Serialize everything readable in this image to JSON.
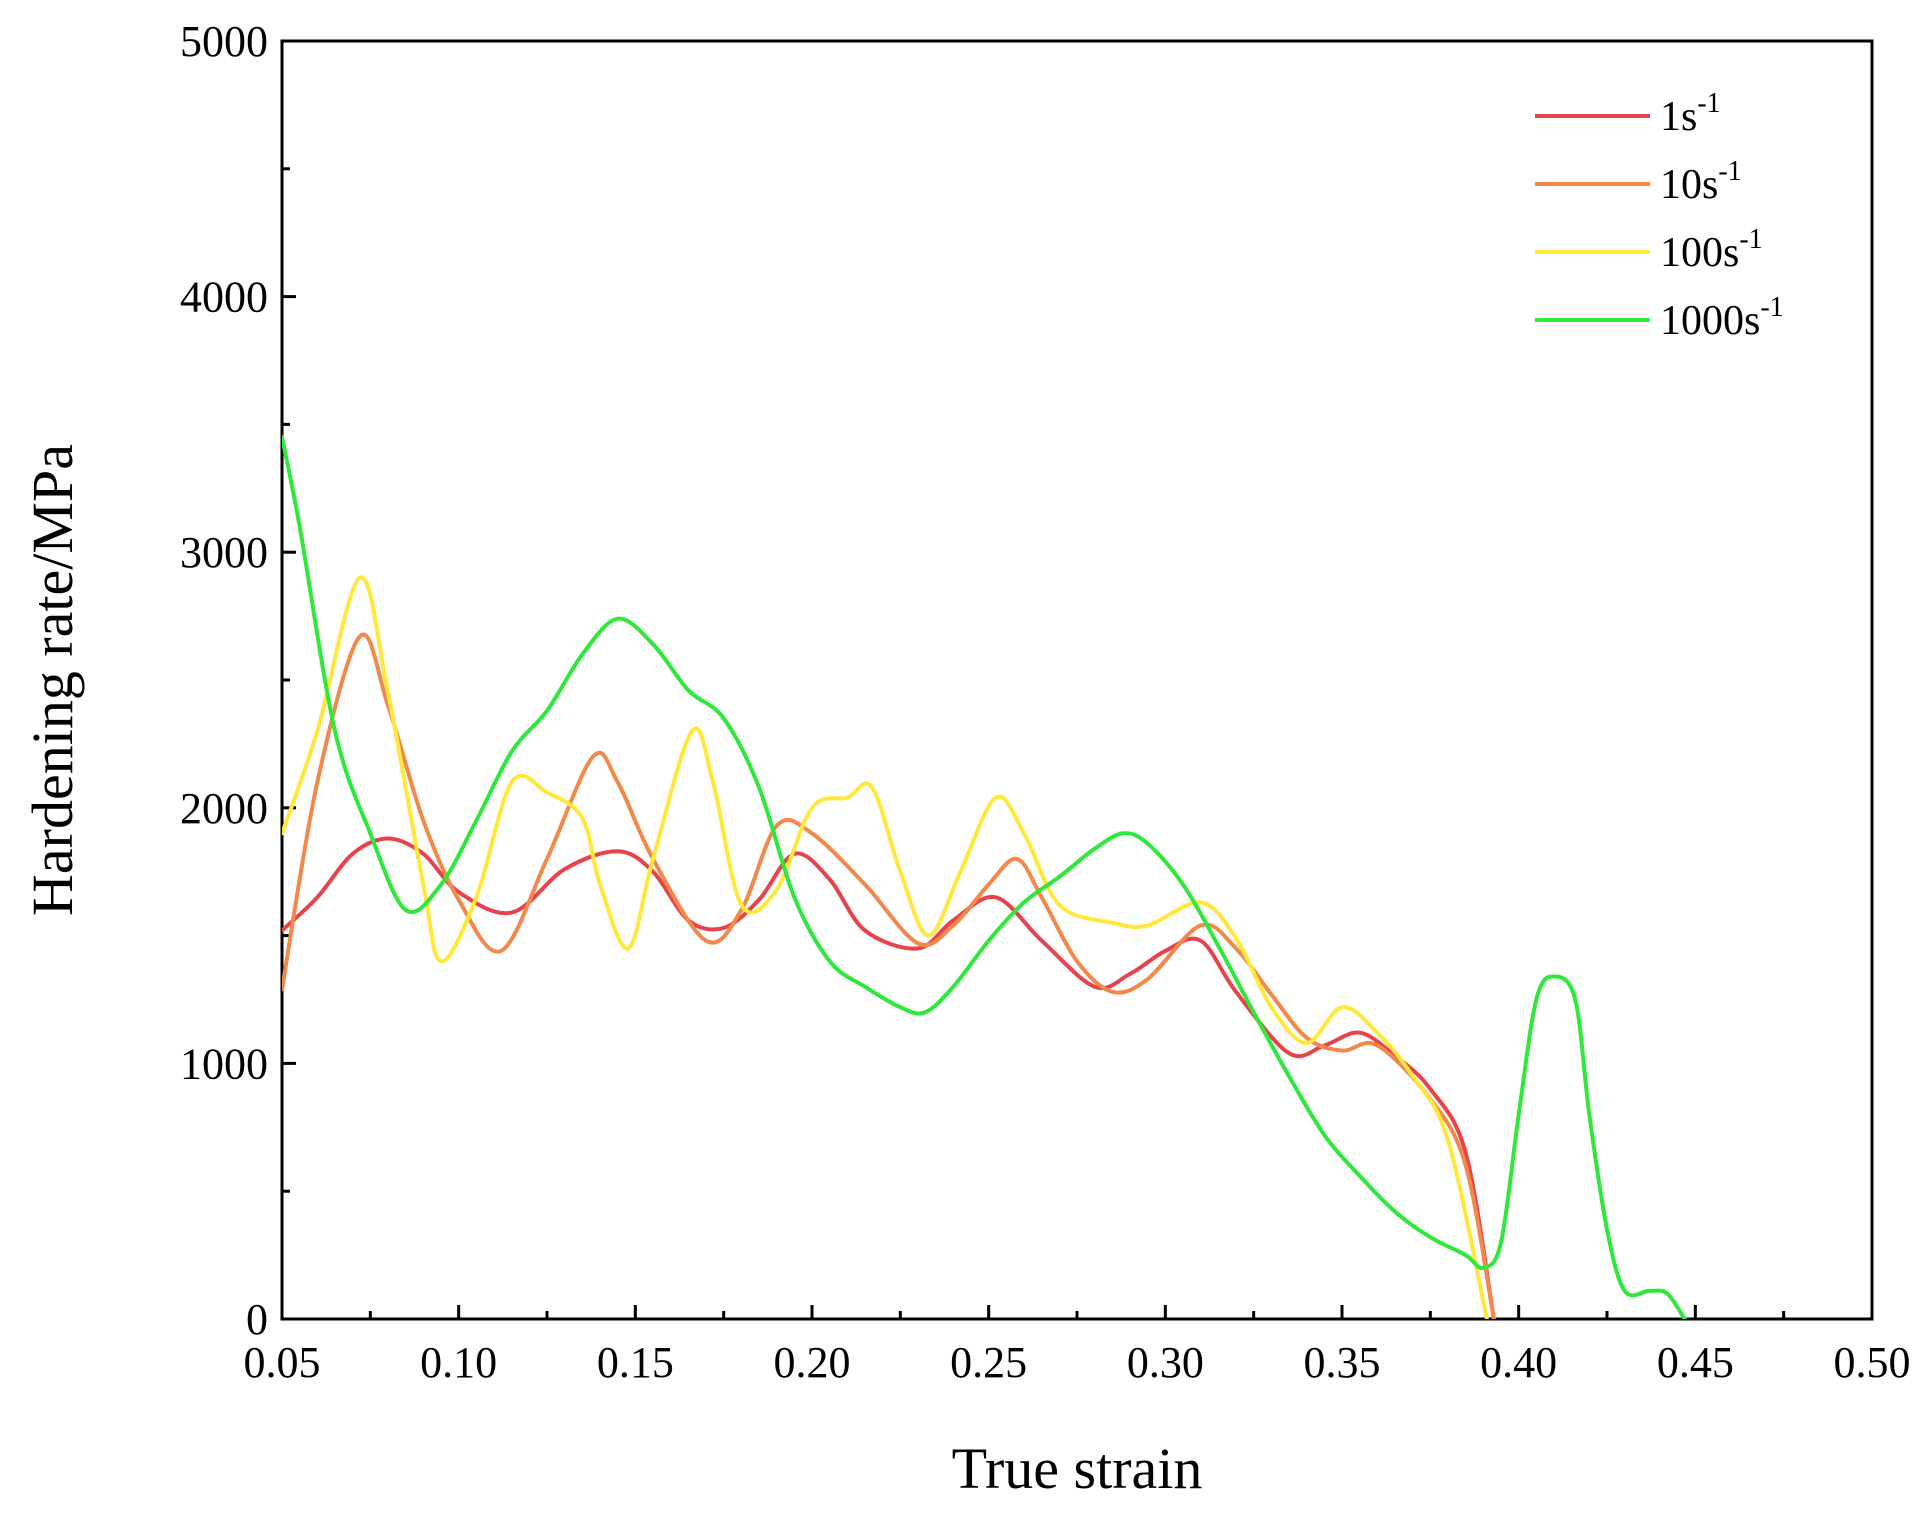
{
  "chart_data": {
    "type": "line",
    "title": "",
    "xlabel": "True strain",
    "ylabel": "Hardening rate/MPa",
    "xlim": [
      0.05,
      0.5
    ],
    "ylim": [
      0,
      5000
    ],
    "xticks": [
      "0.05",
      "0.10",
      "0.15",
      "0.20",
      "0.25",
      "0.30",
      "0.35",
      "0.40",
      "0.45",
      "0.50"
    ],
    "yticks": [
      "0",
      "1000",
      "2000",
      "3000",
      "4000",
      "5000"
    ],
    "legend_position": "top-right",
    "series": [
      {
        "name": "1s",
        "exponent": "-1",
        "color": "#e8424a",
        "points": [
          [
            0.05,
            1520
          ],
          [
            0.06,
            1650
          ],
          [
            0.07,
            1820
          ],
          [
            0.08,
            1880
          ],
          [
            0.09,
            1820
          ],
          [
            0.1,
            1670
          ],
          [
            0.115,
            1590
          ],
          [
            0.13,
            1760
          ],
          [
            0.145,
            1830
          ],
          [
            0.155,
            1750
          ],
          [
            0.165,
            1560
          ],
          [
            0.175,
            1530
          ],
          [
            0.185,
            1640
          ],
          [
            0.195,
            1820
          ],
          [
            0.205,
            1720
          ],
          [
            0.215,
            1520
          ],
          [
            0.23,
            1450
          ],
          [
            0.24,
            1560
          ],
          [
            0.252,
            1650
          ],
          [
            0.265,
            1480
          ],
          [
            0.28,
            1300
          ],
          [
            0.29,
            1350
          ],
          [
            0.3,
            1440
          ],
          [
            0.31,
            1480
          ],
          [
            0.32,
            1280
          ],
          [
            0.335,
            1040
          ],
          [
            0.345,
            1070
          ],
          [
            0.355,
            1120
          ],
          [
            0.365,
            1030
          ],
          [
            0.375,
            900
          ],
          [
            0.385,
            650
          ],
          [
            0.393,
            0
          ]
        ]
      },
      {
        "name": "10s",
        "exponent": "-1",
        "color": "#f2884a",
        "points": [
          [
            0.05,
            1290
          ],
          [
            0.06,
            2100
          ],
          [
            0.072,
            2670
          ],
          [
            0.08,
            2400
          ],
          [
            0.09,
            1950
          ],
          [
            0.1,
            1640
          ],
          [
            0.112,
            1440
          ],
          [
            0.125,
            1800
          ],
          [
            0.138,
            2200
          ],
          [
            0.145,
            2100
          ],
          [
            0.155,
            1800
          ],
          [
            0.17,
            1480
          ],
          [
            0.18,
            1600
          ],
          [
            0.19,
            1930
          ],
          [
            0.2,
            1900
          ],
          [
            0.215,
            1700
          ],
          [
            0.23,
            1470
          ],
          [
            0.24,
            1540
          ],
          [
            0.25,
            1700
          ],
          [
            0.258,
            1800
          ],
          [
            0.265,
            1650
          ],
          [
            0.275,
            1400
          ],
          [
            0.285,
            1280
          ],
          [
            0.295,
            1330
          ],
          [
            0.31,
            1540
          ],
          [
            0.32,
            1450
          ],
          [
            0.33,
            1270
          ],
          [
            0.34,
            1100
          ],
          [
            0.35,
            1050
          ],
          [
            0.36,
            1070
          ],
          [
            0.375,
            860
          ],
          [
            0.385,
            600
          ],
          [
            0.393,
            0
          ]
        ]
      },
      {
        "name": "100s",
        "exponent": "-1",
        "color": "#ffe83a",
        "points": [
          [
            0.05,
            1900
          ],
          [
            0.06,
            2300
          ],
          [
            0.072,
            2900
          ],
          [
            0.08,
            2450
          ],
          [
            0.09,
            1700
          ],
          [
            0.095,
            1400
          ],
          [
            0.105,
            1650
          ],
          [
            0.115,
            2100
          ],
          [
            0.125,
            2060
          ],
          [
            0.135,
            1960
          ],
          [
            0.14,
            1700
          ],
          [
            0.148,
            1450
          ],
          [
            0.155,
            1800
          ],
          [
            0.166,
            2300
          ],
          [
            0.172,
            2100
          ],
          [
            0.18,
            1620
          ],
          [
            0.19,
            1680
          ],
          [
            0.2,
            2000
          ],
          [
            0.21,
            2040
          ],
          [
            0.217,
            2080
          ],
          [
            0.225,
            1750
          ],
          [
            0.233,
            1500
          ],
          [
            0.242,
            1750
          ],
          [
            0.252,
            2040
          ],
          [
            0.26,
            1900
          ],
          [
            0.27,
            1620
          ],
          [
            0.285,
            1550
          ],
          [
            0.295,
            1540
          ],
          [
            0.31,
            1630
          ],
          [
            0.32,
            1490
          ],
          [
            0.33,
            1220
          ],
          [
            0.34,
            1080
          ],
          [
            0.35,
            1220
          ],
          [
            0.36,
            1120
          ],
          [
            0.37,
            950
          ],
          [
            0.38,
            700
          ],
          [
            0.391,
            0
          ]
        ]
      },
      {
        "name": "1000s",
        "exponent": "-1",
        "color": "#2ee83a",
        "points": [
          [
            0.05,
            3450
          ],
          [
            0.055,
            3100
          ],
          [
            0.065,
            2300
          ],
          [
            0.075,
            1900
          ],
          [
            0.085,
            1600
          ],
          [
            0.095,
            1700
          ],
          [
            0.105,
            1950
          ],
          [
            0.115,
            2220
          ],
          [
            0.125,
            2380
          ],
          [
            0.135,
            2600
          ],
          [
            0.145,
            2740
          ],
          [
            0.155,
            2640
          ],
          [
            0.165,
            2460
          ],
          [
            0.175,
            2350
          ],
          [
            0.185,
            2080
          ],
          [
            0.195,
            1650
          ],
          [
            0.205,
            1400
          ],
          [
            0.215,
            1300
          ],
          [
            0.225,
            1220
          ],
          [
            0.232,
            1200
          ],
          [
            0.24,
            1300
          ],
          [
            0.25,
            1480
          ],
          [
            0.26,
            1630
          ],
          [
            0.27,
            1730
          ],
          [
            0.28,
            1840
          ],
          [
            0.288,
            1900
          ],
          [
            0.295,
            1860
          ],
          [
            0.305,
            1700
          ],
          [
            0.315,
            1460
          ],
          [
            0.325,
            1200
          ],
          [
            0.335,
            950
          ],
          [
            0.345,
            720
          ],
          [
            0.355,
            560
          ],
          [
            0.365,
            420
          ],
          [
            0.375,
            320
          ],
          [
            0.385,
            250
          ],
          [
            0.39,
            200
          ],
          [
            0.395,
            300
          ],
          [
            0.4,
            800
          ],
          [
            0.405,
            1250
          ],
          [
            0.41,
            1340
          ],
          [
            0.416,
            1250
          ],
          [
            0.42,
            800
          ],
          [
            0.425,
            350
          ],
          [
            0.43,
            110
          ],
          [
            0.437,
            110
          ],
          [
            0.442,
            100
          ],
          [
            0.447,
            0
          ]
        ]
      }
    ]
  }
}
